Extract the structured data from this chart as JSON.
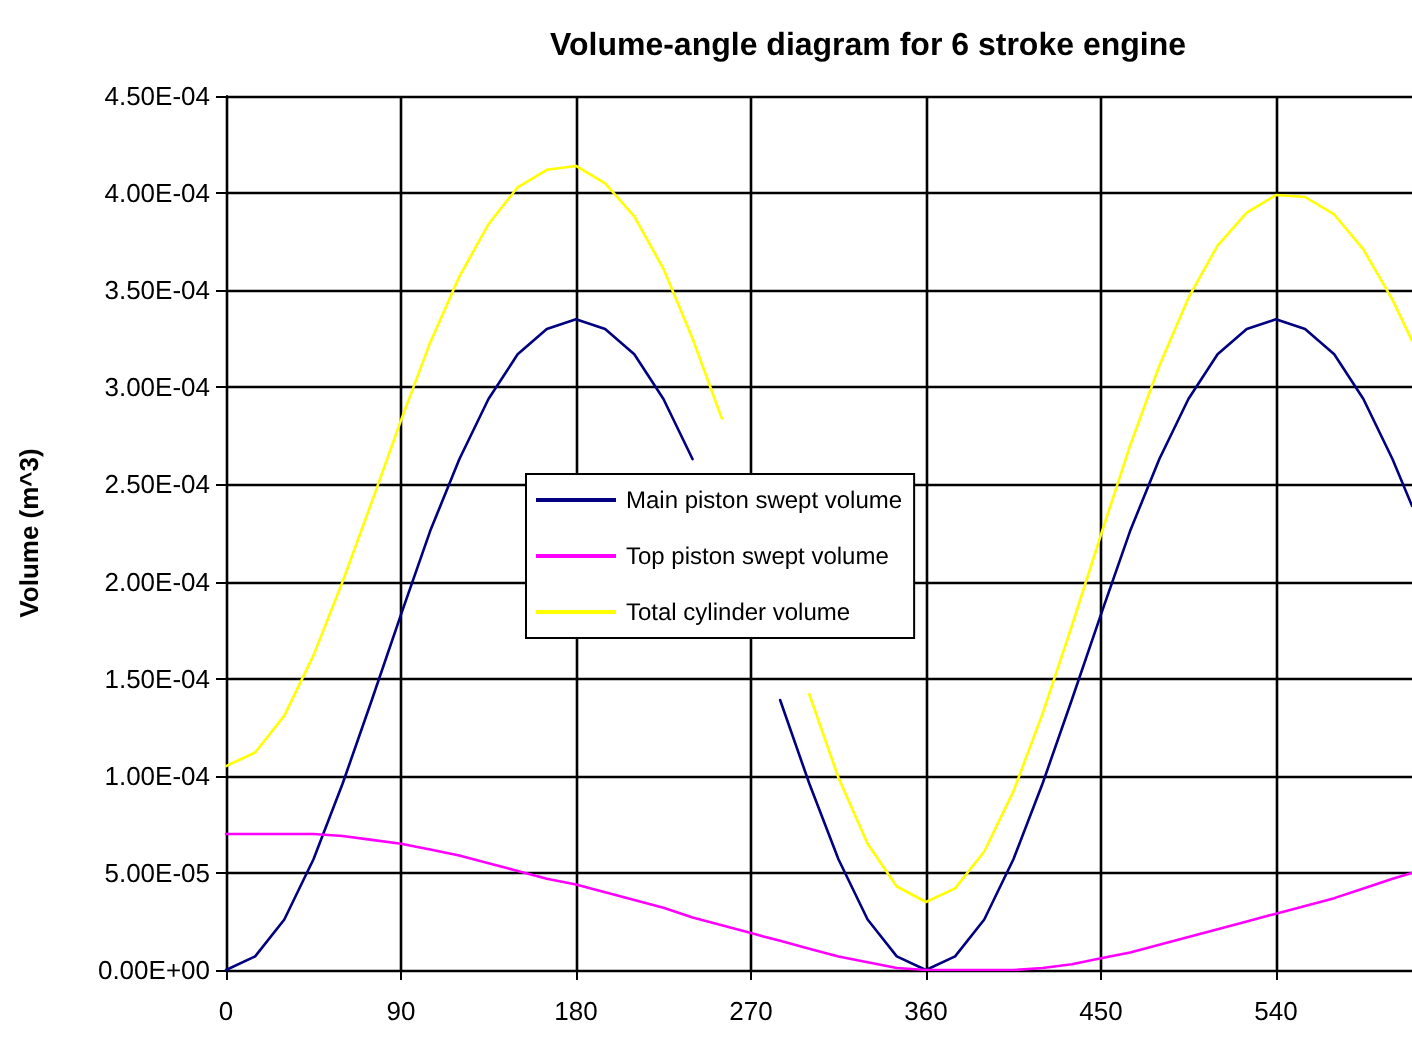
{
  "chart_data": {
    "type": "line",
    "title": "Volume-angle diagram for 6 stroke engine",
    "ylabel": "Volume (m^3)",
    "x": [
      0,
      15,
      30,
      45,
      60,
      75,
      90,
      105,
      120,
      135,
      150,
      165,
      180,
      195,
      210,
      225,
      240,
      255,
      270,
      285,
      300,
      315,
      330,
      345,
      360,
      375,
      390,
      405,
      420,
      435,
      450,
      465,
      480,
      495,
      510,
      525,
      540,
      555,
      570,
      585,
      600,
      610
    ],
    "series": [
      {
        "name": "Main piston swept volume",
        "color": "#000080",
        "values": [
          0,
          7e-06,
          2.6e-05,
          5.7e-05,
          9.6e-05,
          0.000139,
          0.000183,
          0.000226,
          0.000263,
          0.000294,
          0.000317,
          0.00033,
          0.000335,
          0.00033,
          0.000317,
          0.000294,
          0.000263,
          null,
          null,
          0.000139,
          9.6e-05,
          5.7e-05,
          2.6e-05,
          7e-06,
          0,
          7e-06,
          2.6e-05,
          5.7e-05,
          9.6e-05,
          0.000139,
          0.000183,
          0.000226,
          0.000263,
          0.000294,
          0.000317,
          0.00033,
          0.000335,
          0.00033,
          0.000317,
          0.000294,
          0.000263,
          0.000239
        ]
      },
      {
        "name": "Top piston swept volume",
        "color": "#ff00ff",
        "values": [
          7e-05,
          7e-05,
          7e-05,
          7e-05,
          6.9e-05,
          6.7e-05,
          6.5e-05,
          6.2e-05,
          5.9e-05,
          5.5e-05,
          5.1e-05,
          4.7e-05,
          4.4e-05,
          4e-05,
          3.6e-05,
          3.2e-05,
          2.7e-05,
          2.3e-05,
          1.9e-05,
          1.5e-05,
          1.1e-05,
          7e-06,
          4e-06,
          1e-06,
          0,
          0,
          0,
          0,
          1e-06,
          3e-06,
          6e-06,
          9e-06,
          1.3e-05,
          1.7e-05,
          2.1e-05,
          2.5e-05,
          2.9e-05,
          3.3e-05,
          3.7e-05,
          4.2e-05,
          4.7e-05,
          5e-05
        ]
      },
      {
        "name": "Total cylinder volume",
        "color": "#ffff00",
        "values": [
          0.000105,
          0.000112,
          0.000131,
          0.000162,
          0.0002,
          0.000241,
          0.000283,
          0.000323,
          0.000357,
          0.000384,
          0.000403,
          0.000412,
          0.000414,
          0.000405,
          0.000388,
          0.000361,
          0.000325,
          0.000284,
          null,
          null,
          0.000142,
          9.9e-05,
          6.5e-05,
          4.3e-05,
          3.5e-05,
          4.2e-05,
          6.1e-05,
          9.2e-05,
          0.000132,
          0.000177,
          0.000224,
          0.00027,
          0.000311,
          0.000346,
          0.000373,
          0.00039,
          0.000399,
          0.000398,
          0.000389,
          0.000371,
          0.000345,
          0.000324
        ]
      }
    ],
    "xlim": [
      0,
      610
    ],
    "xticks": [
      0,
      90,
      180,
      270,
      360,
      450,
      540
    ],
    "ylim": [
      0,
      0.00045
    ],
    "yticks": [
      {
        "value": 0,
        "label": "0.00E+00"
      },
      {
        "value": 5e-05,
        "label": "5.00E-05"
      },
      {
        "value": 0.0001,
        "label": "1.00E-04"
      },
      {
        "value": 0.00015,
        "label": "1.50E-04"
      },
      {
        "value": 0.0002,
        "label": "2.00E-04"
      },
      {
        "value": 0.00025,
        "label": "2.50E-04"
      },
      {
        "value": 0.0003,
        "label": "3.00E-04"
      },
      {
        "value": 0.00035,
        "label": "3.50E-04"
      },
      {
        "value": 0.0004,
        "label": "4.00E-04"
      },
      {
        "value": 0.00045,
        "label": "4.50E-04"
      }
    ],
    "grid": true,
    "legend": "center",
    "marker": "none",
    "line_style": "solid"
  }
}
